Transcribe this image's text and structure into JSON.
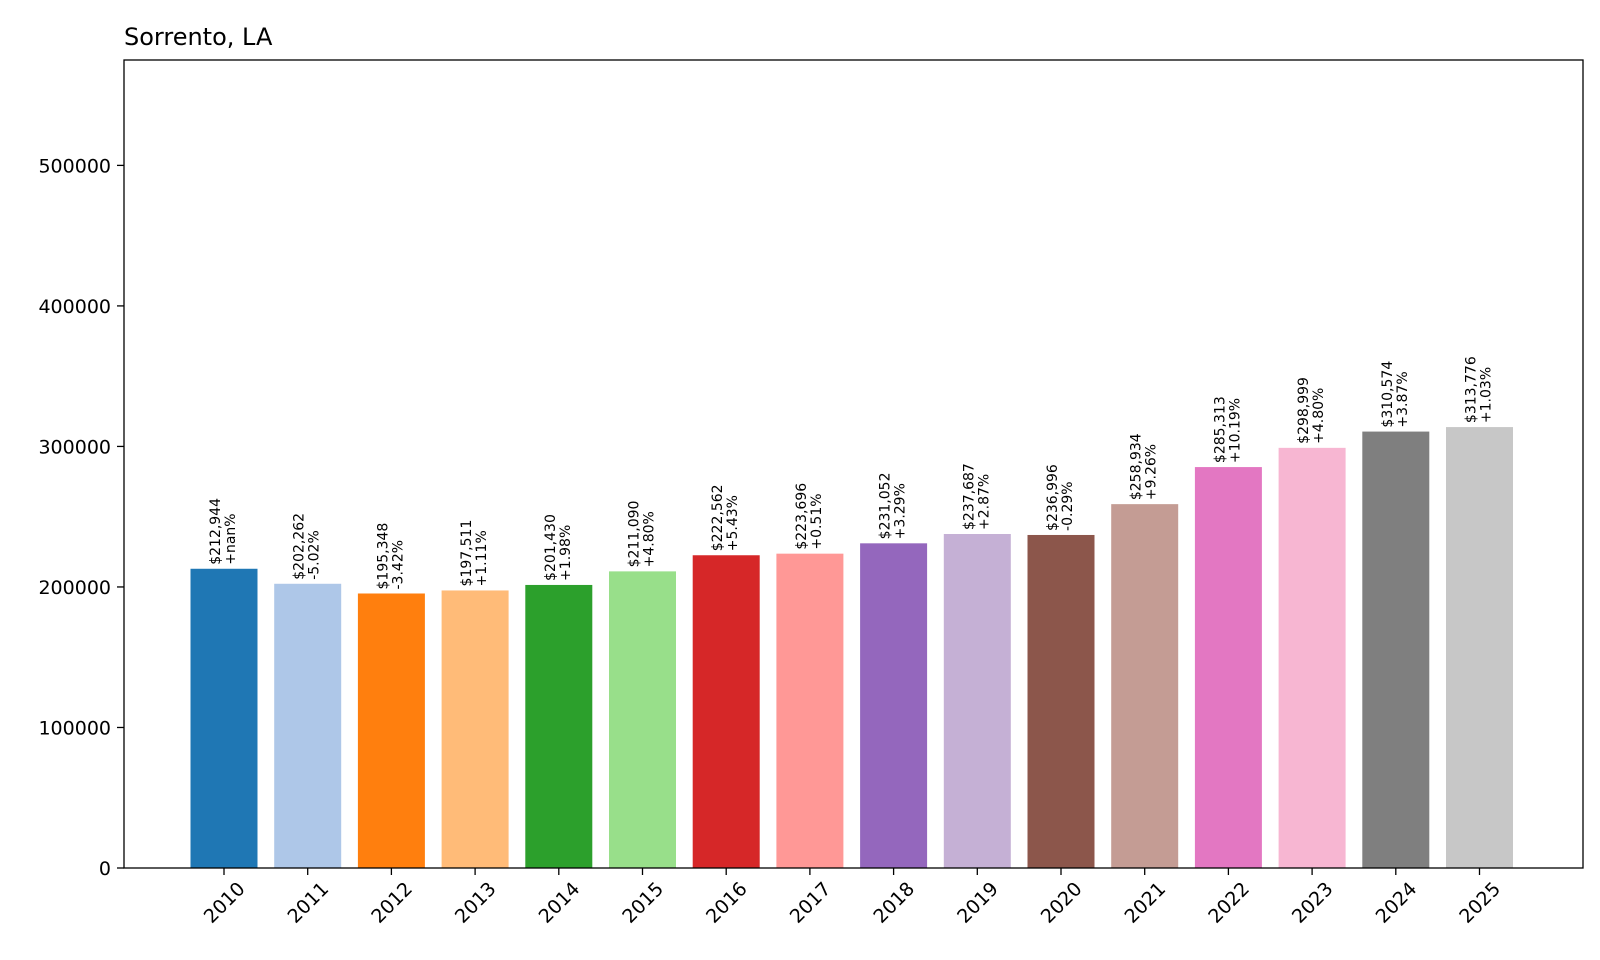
{
  "chart_data": {
    "type": "bar",
    "title": "Sorrento, LA",
    "xlabel": "",
    "ylabel": "",
    "ylim": [
      0,
      575000
    ],
    "yticks": [
      0,
      100000,
      200000,
      300000,
      400000,
      500000
    ],
    "ytick_labels": [
      "0",
      "100000",
      "200000",
      "300000",
      "400000",
      "500000"
    ],
    "categories": [
      "2010",
      "2011",
      "2012",
      "2013",
      "2014",
      "2015",
      "2016",
      "2017",
      "2018",
      "2019",
      "2020",
      "2021",
      "2022",
      "2023",
      "2024",
      "2025"
    ],
    "values": [
      212944,
      202262,
      195348,
      197511,
      201430,
      211090,
      222562,
      223696,
      231052,
      237687,
      236996,
      258934,
      285313,
      298999,
      310574,
      313776
    ],
    "value_labels": [
      "$212,944",
      "$202,262",
      "$195,348",
      "$197,511",
      "$201,430",
      "$211,090",
      "$222,562",
      "$223,696",
      "$231,052",
      "$237,687",
      "$236,996",
      "$258,934",
      "$285,313",
      "$298,999",
      "$310,574",
      "$313,776"
    ],
    "change_labels": [
      "+nan%",
      "-5.02%",
      "-3.42%",
      "+1.11%",
      "+1.98%",
      "+4.80%",
      "+5.43%",
      "+0.51%",
      "+3.29%",
      "+2.87%",
      "-0.29%",
      "+9.26%",
      "+10.19%",
      "+4.80%",
      "+3.87%",
      "+1.03%"
    ],
    "colors": [
      "#1f77b4",
      "#aec7e8",
      "#ff7f0e",
      "#ffbb78",
      "#2ca02c",
      "#98df8a",
      "#d62728",
      "#ff9896",
      "#9467bd",
      "#c5b0d5",
      "#8c564b",
      "#c49c94",
      "#e377c2",
      "#f7b6d2",
      "#7f7f7f",
      "#c7c7c7"
    ],
    "grid": false,
    "legend": "none"
  }
}
